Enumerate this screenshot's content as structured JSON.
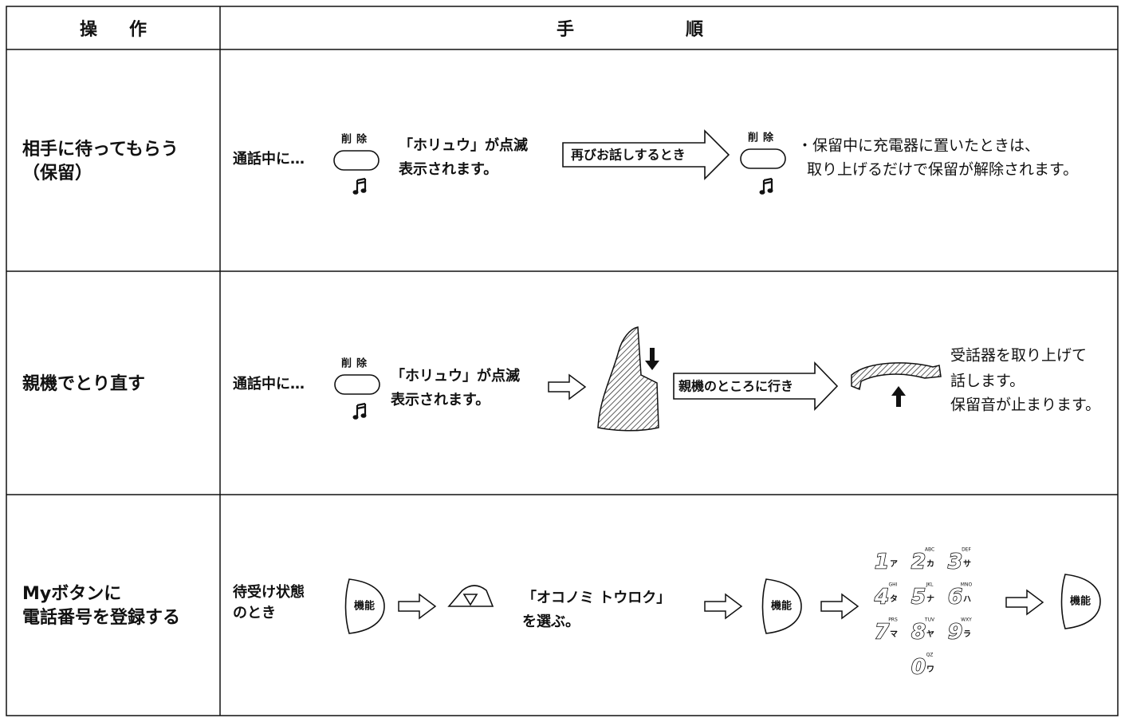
{
  "table": {
    "header": [
      "操作",
      "手順"
    ],
    "rows": [
      {
        "operation": [
          "相手に待ってもらう",
          "（保留）"
        ],
        "steps": {
          "lead": "通話中に…",
          "button_1": "削除",
          "result": [
            "「ホリュウ」が点滅",
            "表示されます。"
          ],
          "arrow": "再びお話しするとき",
          "button_2": "削除",
          "note": [
            "・保留中に充電器に置いたときは、",
            "取り上げるだけで保留が解除されます。"
          ]
        }
      },
      {
        "operation": [
          "親機でとり直す"
        ],
        "steps": {
          "lead": "通話中に…",
          "button_1": "削除",
          "result": [
            "「ホリュウ」が点滅",
            "表示されます。"
          ],
          "arrow": "親機のところに行き",
          "note": [
            "受話器を取り上げて",
            "話します。",
            "保留音が止まります。"
          ]
        }
      },
      {
        "operation": [
          "Myボタンに",
          "電話番号を登録する"
        ],
        "steps": {
          "lead": [
            "待受け状態",
            "のとき"
          ],
          "button_1": "機能",
          "result": [
            "「オコノミ トウロク」",
            "を選ぶ。"
          ],
          "button_2": "機能",
          "keys": [
            {
              "number": "1",
              "kana": "ア"
            },
            {
              "number": "2",
              "kana": "カ",
              "letters": "ABC"
            },
            {
              "number": "3",
              "kana": "サ",
              "letters": "DEF"
            },
            {
              "number": "4",
              "kana": "タ",
              "letters": "GHI"
            },
            {
              "number": "5",
              "kana": "ナ",
              "letters": "JKL"
            },
            {
              "number": "6",
              "kana": "ハ",
              "letters": "MNO"
            },
            {
              "number": "7",
              "kana": "マ",
              "letters": "PRS"
            },
            {
              "number": "8",
              "kana": "ヤ",
              "letters": "TUV"
            },
            {
              "number": "9",
              "kana": "ラ",
              "letters": "WXY"
            },
            {
              "number": "0",
              "kana": "ワ",
              "letters": "QZ"
            }
          ],
          "button_3": "機能"
        }
      }
    ]
  }
}
